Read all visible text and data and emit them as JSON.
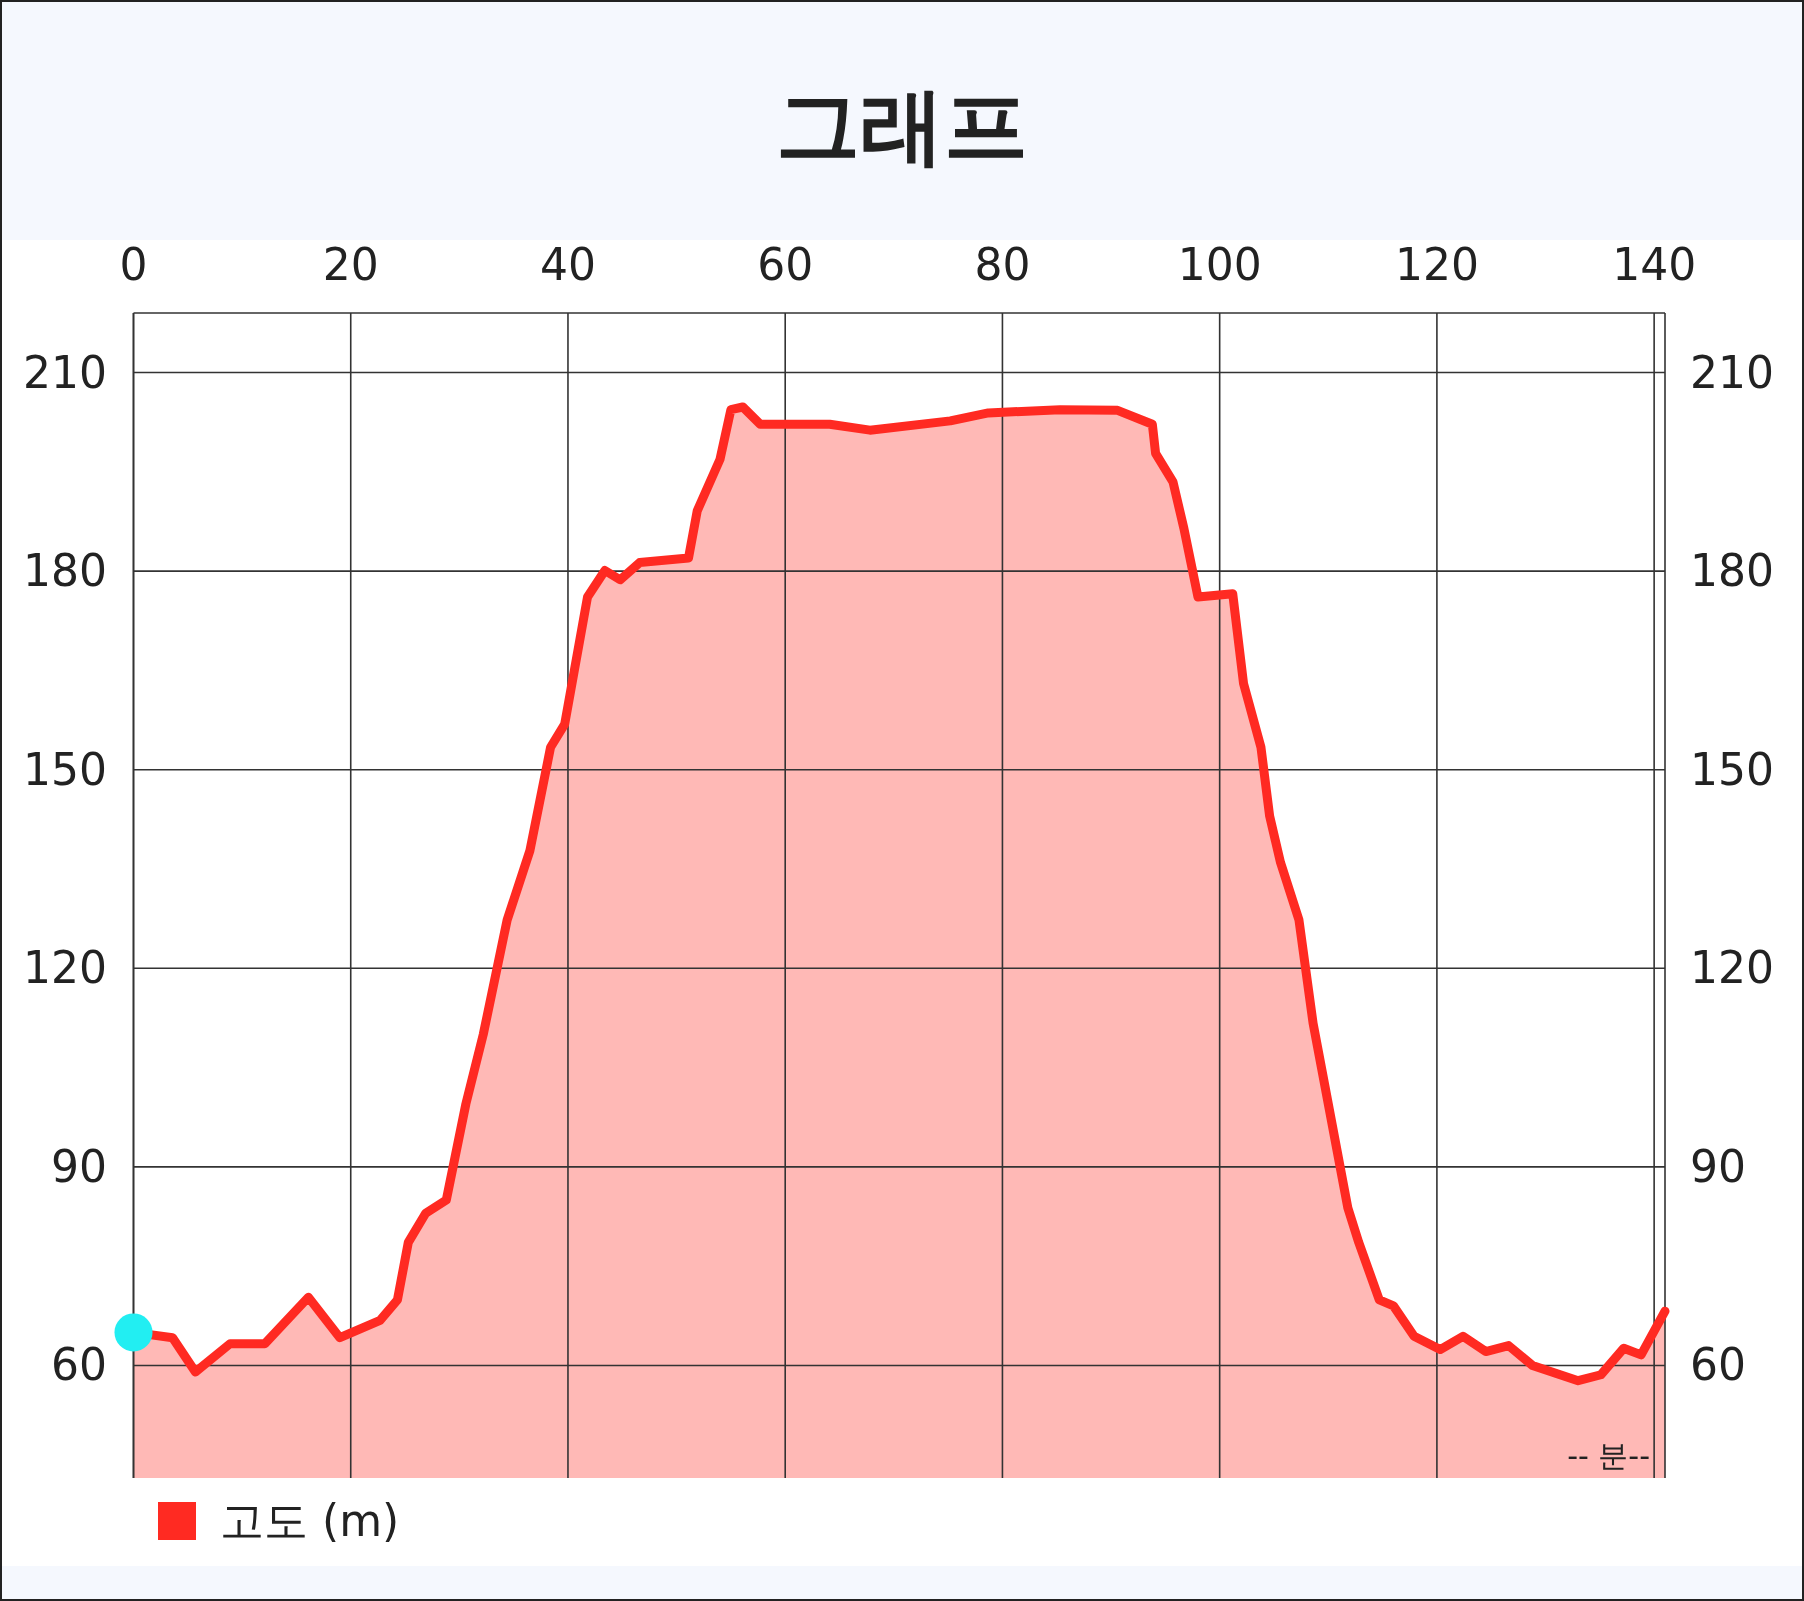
{
  "chart_data": {
    "type": "area",
    "title": "그래프",
    "xlabel": "-- 분--",
    "legend": "bottom left",
    "grid": true,
    "xlim": [
      0,
      141
    ],
    "xticks": [
      0,
      20,
      40,
      60,
      80,
      100,
      120,
      140
    ],
    "ylim": [
      43,
      219
    ],
    "yticks": [
      60,
      90,
      120,
      150,
      180,
      210
    ],
    "y2lim": [
      43,
      219
    ],
    "y2ticks": [
      60,
      90,
      120,
      150,
      180,
      210
    ],
    "series": [
      {
        "name": "고도 (m)",
        "color": "#ff2a22",
        "x": [
          0,
          3.6,
          5.7,
          8.9,
          12.1,
          16.1,
          19.0,
          22.7,
          24.3,
          25.3,
          26.9,
          28.8,
          30.6,
          32.2,
          34.4,
          36.5,
          38.4,
          39.7,
          41.8,
          43.4,
          44.8,
          46.6,
          51.1,
          51.9,
          54.0,
          55.0,
          56.1,
          57.7,
          64.1,
          67.8,
          75.2,
          78.7,
          85.3,
          90.6,
          93.8,
          94.1,
          95.7,
          96.7,
          98.0,
          101.2,
          102.2,
          103.8,
          104.6,
          105.6,
          107.3,
          108.6,
          109.6,
          111.8,
          112.8,
          114.7,
          116.0,
          117.9,
          120.3,
          122.4,
          124.5,
          126.6,
          128.8,
          133.0,
          135.1,
          137.2,
          138.8,
          141
        ],
        "values": [
          65,
          64.2,
          59,
          63.3,
          63.3,
          70.3,
          64.2,
          66.8,
          69.9,
          78.6,
          83,
          85,
          99.5,
          110,
          127.3,
          137.8,
          153.4,
          156.9,
          176.1,
          180.1,
          178.7,
          181.3,
          182,
          189.1,
          196.9,
          204.4,
          204.8,
          202.2,
          202.2,
          201.3,
          202.7,
          203.9,
          204.4,
          204.3,
          202.2,
          197.8,
          193.5,
          186.5,
          176.1,
          176.6,
          163,
          153.4,
          143,
          136,
          127.3,
          111.7,
          103,
          83.8,
          78.6,
          69.9,
          69,
          64.4,
          62.4,
          64.4,
          62.1,
          63,
          60,
          57.7,
          58.6,
          62.6,
          61.6,
          68.2
        ]
      },
      {
        "type": "scatter",
        "marker": "circle",
        "color": "#22eef2",
        "x": [
          0
        ],
        "values": [
          65
        ]
      }
    ]
  }
}
